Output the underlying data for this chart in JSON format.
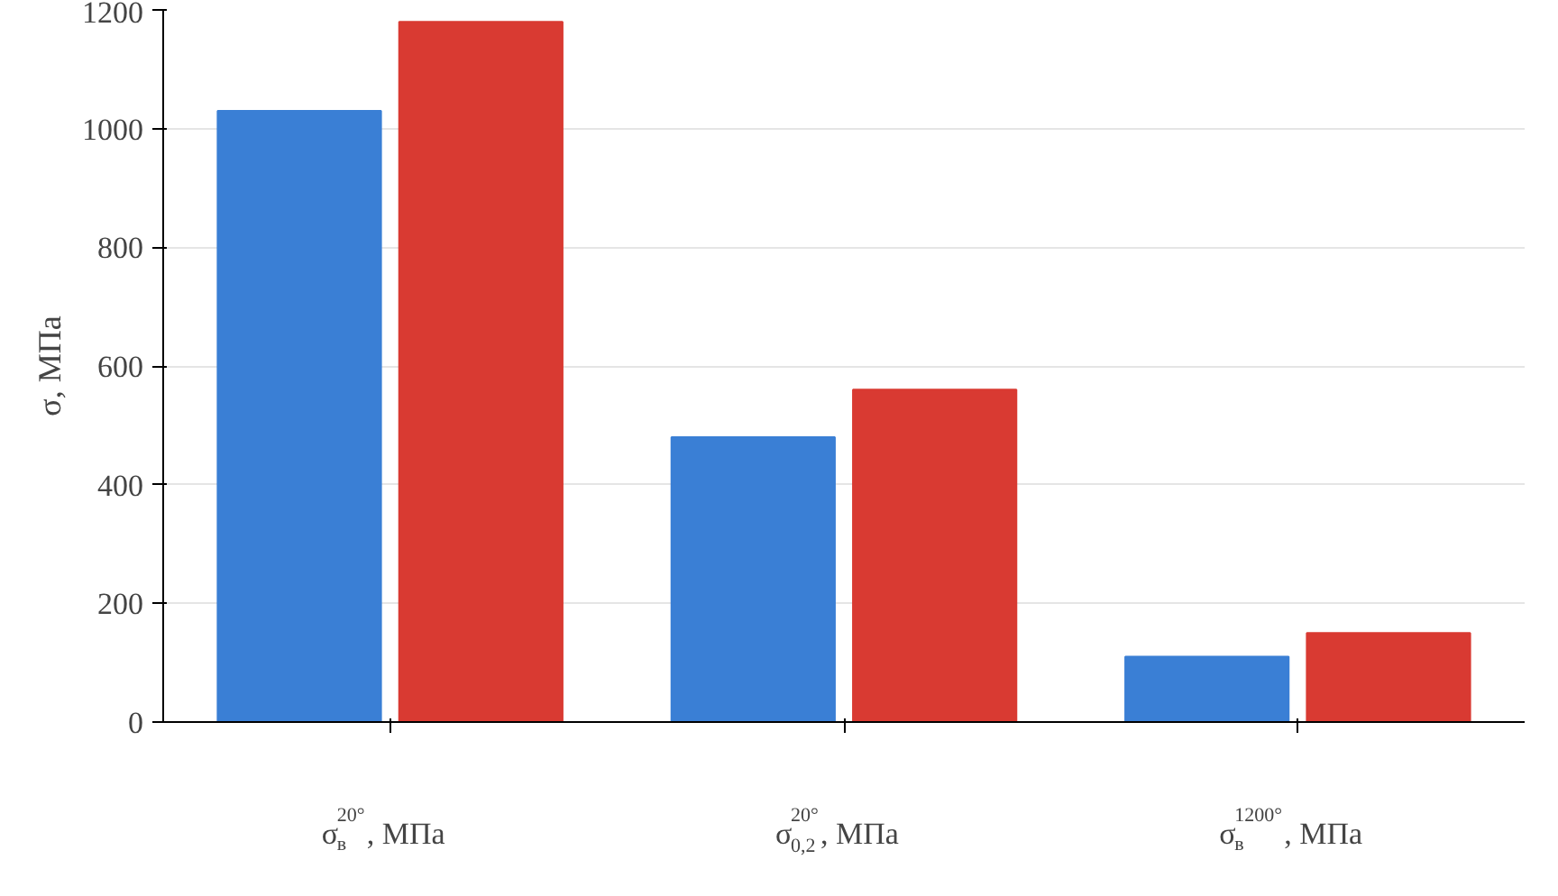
{
  "chart_data": {
    "type": "bar",
    "ylabel": "σ, МПа",
    "categories": [
      "σ$_{в}$$^{20°}$,  МПа",
      "σ$_{0,2}$$^{20°}$,  МПа",
      "σ$_{в}$$^{1200°}$,  МПа"
    ],
    "series": [
      {
        "color": "#3a7fd5",
        "values": [
          1030,
          480,
          110
        ]
      },
      {
        "color": "#d93a32",
        "values": [
          1180,
          560,
          150
        ]
      }
    ],
    "ylim": [
      0,
      1200
    ],
    "yticks": [
      0,
      200,
      400,
      600,
      800,
      1000,
      1200
    ],
    "grid": "y"
  }
}
